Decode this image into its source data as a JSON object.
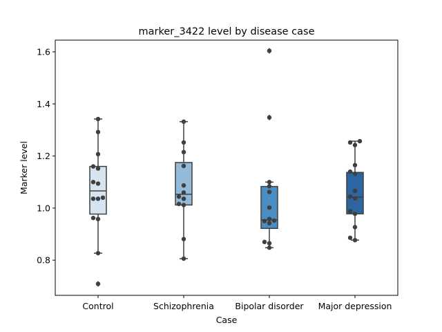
{
  "chart_data": {
    "type": "box",
    "title": "marker_3422 level by disease case",
    "xlabel": "Case",
    "ylabel": "Marker level",
    "ylim": [
      0.665,
      1.645
    ],
    "yticks": [
      0.8,
      1.0,
      1.2,
      1.4,
      1.6
    ],
    "ytick_labels": [
      "0.8",
      "1.0",
      "1.2",
      "1.4",
      "1.6"
    ],
    "grid": false,
    "categories": [
      "Control",
      "Schizophrenia",
      "Bipolar disorder",
      "Major depression"
    ],
    "colors": [
      "#d6e3f0",
      "#93bad9",
      "#4c8dc1",
      "#2c65a0"
    ],
    "point_color": "#3f3f3f",
    "boxes": [
      {
        "q1": 0.977,
        "median": 1.066,
        "q3": 1.16,
        "whisker_low": 0.827,
        "whisker_high": 1.342,
        "outliers": [
          0.709
        ]
      },
      {
        "q1": 1.012,
        "median": 1.053,
        "q3": 1.175,
        "whisker_low": 0.806,
        "whisker_high": 1.332,
        "outliers": []
      },
      {
        "q1": 0.922,
        "median": 0.955,
        "q3": 1.083,
        "whisker_low": 0.848,
        "whisker_high": 1.1,
        "outliers": [
          1.348,
          1.604
        ]
      },
      {
        "q1": 0.978,
        "median": 1.042,
        "q3": 1.137,
        "whisker_low": 0.877,
        "whisker_high": 1.257,
        "outliers": []
      }
    ],
    "points": [
      [
        1.342,
        1.292,
        1.207,
        1.16,
        1.152,
        1.1,
        1.094,
        1.04,
        1.036,
        1.036,
        0.962,
        0.958,
        0.827,
        0.709
      ],
      [
        1.332,
        1.252,
        1.215,
        1.162,
        1.087,
        1.06,
        1.044,
        1.036,
        1.016,
        1.012,
        0.881,
        0.806
      ],
      [
        1.604,
        1.348,
        1.1,
        1.084,
        1.062,
        1.002,
        0.958,
        0.952,
        0.95,
        0.942,
        0.87,
        0.865,
        0.848
      ],
      [
        1.257,
        1.252,
        1.242,
        1.165,
        1.14,
        1.132,
        1.066,
        1.044,
        1.037,
        0.988,
        0.978,
        0.927,
        0.886,
        0.877
      ]
    ]
  }
}
